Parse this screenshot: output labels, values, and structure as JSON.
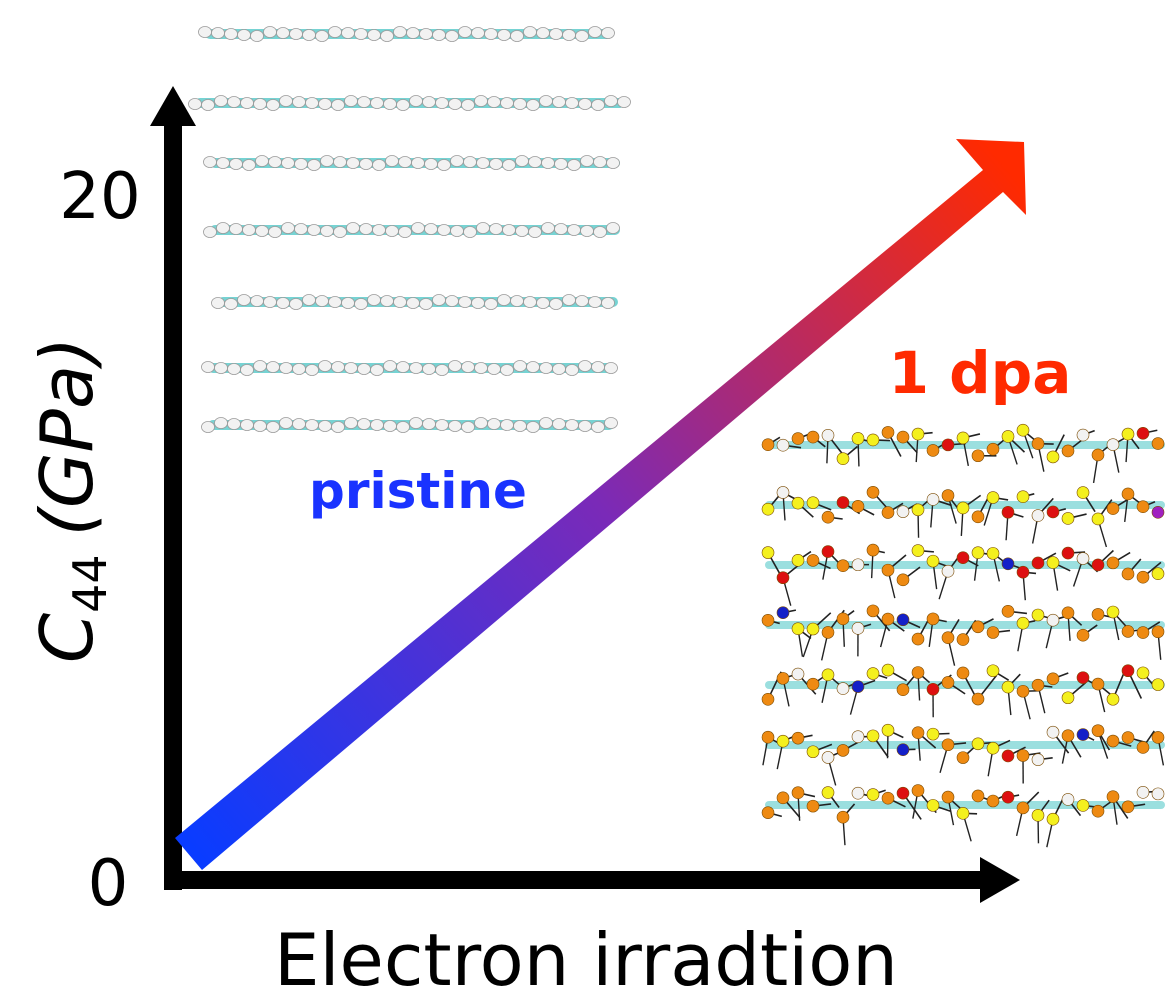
{
  "figure": {
    "y_axis": {
      "label_main": "C",
      "label_sub": "44",
      "label_unit": "(GPa)",
      "tick_top": "20",
      "tick_bottom": "0"
    },
    "x_axis": {
      "label": "Electron irradtion"
    },
    "annotations": {
      "pristine": "pristine",
      "damaged": "1 dpa"
    },
    "colors": {
      "pristine_label": "#1a33ff",
      "damaged_label": "#ff2a00",
      "arrow_start": "#0a3cff",
      "arrow_mid": "#7a2ab8",
      "arrow_end": "#ff2a00",
      "axis": "#000000",
      "atom_white": "#f2f2f2",
      "bond_cyan": "#48c4c4",
      "atom_orange": "#ee8a12",
      "atom_yellow": "#f4f01e",
      "atom_red": "#dd1010",
      "atom_blue": "#1420c8",
      "atom_purple": "#a020c0"
    },
    "icons": {
      "pristine_structure": "layered-graphite-structure",
      "damaged_structure": "irradiated-defective-structure",
      "trend_arrow": "increasing-arrow-icon"
    }
  }
}
